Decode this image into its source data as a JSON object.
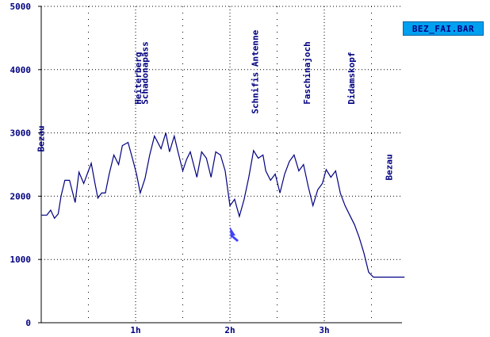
{
  "file_label": "BEZ_FAI.BAR",
  "colors": {
    "line": "#000080",
    "text": "#000080",
    "grid": "#000000",
    "badge": "#00a0f0",
    "cursor": "#4040ff"
  },
  "cursor_icon": "arrow-cursor-icon",
  "chart_data": {
    "type": "line",
    "xlabel": "",
    "ylabel": "",
    "ylim": [
      0,
      5000
    ],
    "xlim_hours": [
      0,
      3.85
    ],
    "yticks": [
      "0",
      "1000",
      "2000",
      "3000",
      "4000",
      "5000"
    ],
    "xticks": [
      {
        "label": "1h",
        "value": 1
      },
      {
        "label": "2h",
        "value": 2
      },
      {
        "label": "3h",
        "value": 3
      }
    ],
    "grid": true,
    "waypoints": [
      {
        "name": "Bezau",
        "x": 0.03,
        "y": 2700
      },
      {
        "name": "Heiterberg",
        "x": 1.06,
        "y": 3450
      },
      {
        "name": "Schadonapass",
        "x": 1.13,
        "y": 3450
      },
      {
        "name": "Schnifis Antenne",
        "x": 2.3,
        "y": 3300
      },
      {
        "name": "Faschinajoch",
        "x": 2.85,
        "y": 3450
      },
      {
        "name": "Didamskopf",
        "x": 3.32,
        "y": 3450
      },
      {
        "name": "Bezau",
        "x": 3.72,
        "y": 2250
      }
    ],
    "series": [
      {
        "x": [
          0,
          0.06,
          0.1,
          0.14,
          0.18,
          0.21,
          0.25,
          0.3,
          0.36,
          0.4,
          0.45,
          0.5,
          0.53,
          0.57,
          0.6,
          0.64,
          0.68,
          0.72,
          0.77,
          0.82,
          0.86,
          0.92,
          0.97,
          1.01,
          1.05,
          1.1,
          1.15,
          1.2,
          1.27,
          1.32,
          1.36,
          1.41,
          1.45,
          1.5,
          1.54,
          1.58,
          1.65,
          1.7,
          1.75,
          1.8,
          1.85,
          1.9,
          1.95,
          2.0,
          2.05,
          2.1,
          2.15,
          2.2,
          2.25,
          2.3,
          2.35,
          2.38,
          2.43,
          2.48,
          2.53,
          2.58,
          2.63,
          2.68,
          2.73,
          2.78,
          2.83,
          2.88,
          2.93,
          2.98,
          3.02,
          3.07,
          3.12,
          3.17,
          3.22,
          3.27,
          3.32,
          3.37,
          3.42,
          3.47,
          3.52,
          3.57,
          3.62,
          3.67,
          3.72,
          3.77,
          3.82,
          3.85
        ],
        "y": [
          1700,
          1700,
          1780,
          1650,
          1720,
          2000,
          2250,
          2250,
          1900,
          2380,
          2200,
          2400,
          2520,
          2200,
          1970,
          2050,
          2050,
          2350,
          2650,
          2500,
          2800,
          2850,
          2580,
          2350,
          2050,
          2280,
          2650,
          2950,
          2750,
          3000,
          2700,
          2950,
          2700,
          2400,
          2580,
          2700,
          2300,
          2700,
          2600,
          2300,
          2700,
          2650,
          2400,
          1850,
          1950,
          1680,
          1950,
          2300,
          2720,
          2600,
          2650,
          2400,
          2250,
          2350,
          2050,
          2350,
          2550,
          2650,
          2400,
          2500,
          2150,
          1850,
          2100,
          2200,
          2420,
          2300,
          2400,
          2050,
          1850,
          1700,
          1550,
          1350,
          1100,
          800,
          720,
          720,
          720,
          720,
          720,
          720,
          720,
          720
        ]
      }
    ]
  }
}
